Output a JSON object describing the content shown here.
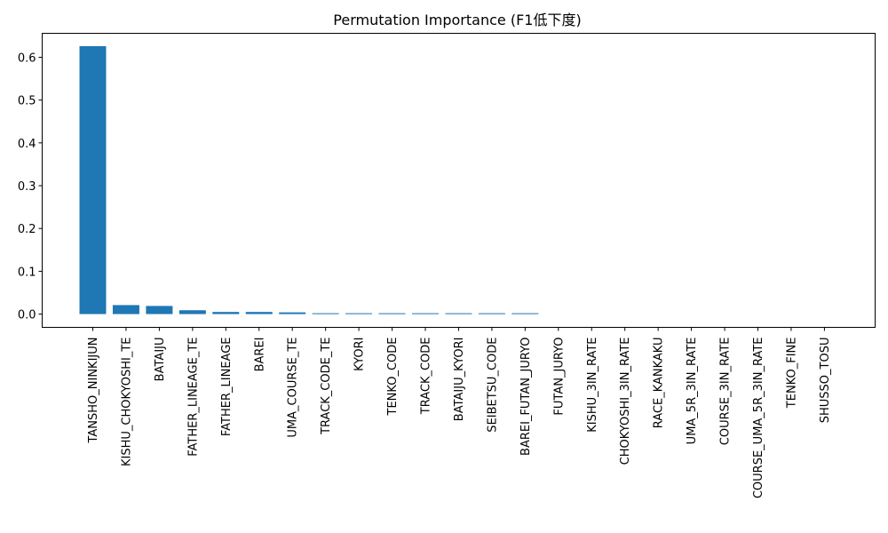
{
  "chart_data": {
    "type": "bar",
    "title": "Permutation Importance (F1低下度)",
    "xlabel": "",
    "ylabel": "",
    "ylim": [
      -0.031,
      0.656
    ],
    "yticks": [
      "0.0",
      "0.1",
      "0.2",
      "0.3",
      "0.4",
      "0.5",
      "0.6"
    ],
    "bar_color": "#1f77b4",
    "grid": false,
    "categories": [
      "TANSHO_NINKIJUN",
      "KISHU_CHOKYOSHI_TE",
      "BATAIJU",
      "FATHER_LINEAGE_TE",
      "FATHER_LINEAGE",
      "BAREI",
      "UMA_COURSE_TE",
      "TRACK_CODE_TE",
      "KYORI",
      "TENKO_CODE",
      "TRACK_CODE",
      "BATAIJU_KYORI",
      "SEIBETSU_CODE",
      "BAREI_FUTAN_JURYO",
      "FUTAN_JURYO",
      "KISHU_3IN_RATE",
      "CHOKYOSHI_3IN_RATE",
      "RACE_KANKAKU",
      "UMA_5R_3IN_RATE",
      "COURSE_3IN_RATE",
      "COURSE_UMA_5R_3IN_RATE",
      "TENKO_FINE",
      "SHUSSO_TOSU"
    ],
    "values": [
      0.626,
      0.021,
      0.019,
      0.009,
      0.005,
      0.005,
      0.004,
      0.002,
      0.002,
      0.002,
      0.002,
      0.002,
      0.002,
      0.002,
      0.0,
      0.0,
      0.0,
      0.0,
      0.0,
      0.0,
      0.0,
      0.0,
      0.0
    ]
  }
}
